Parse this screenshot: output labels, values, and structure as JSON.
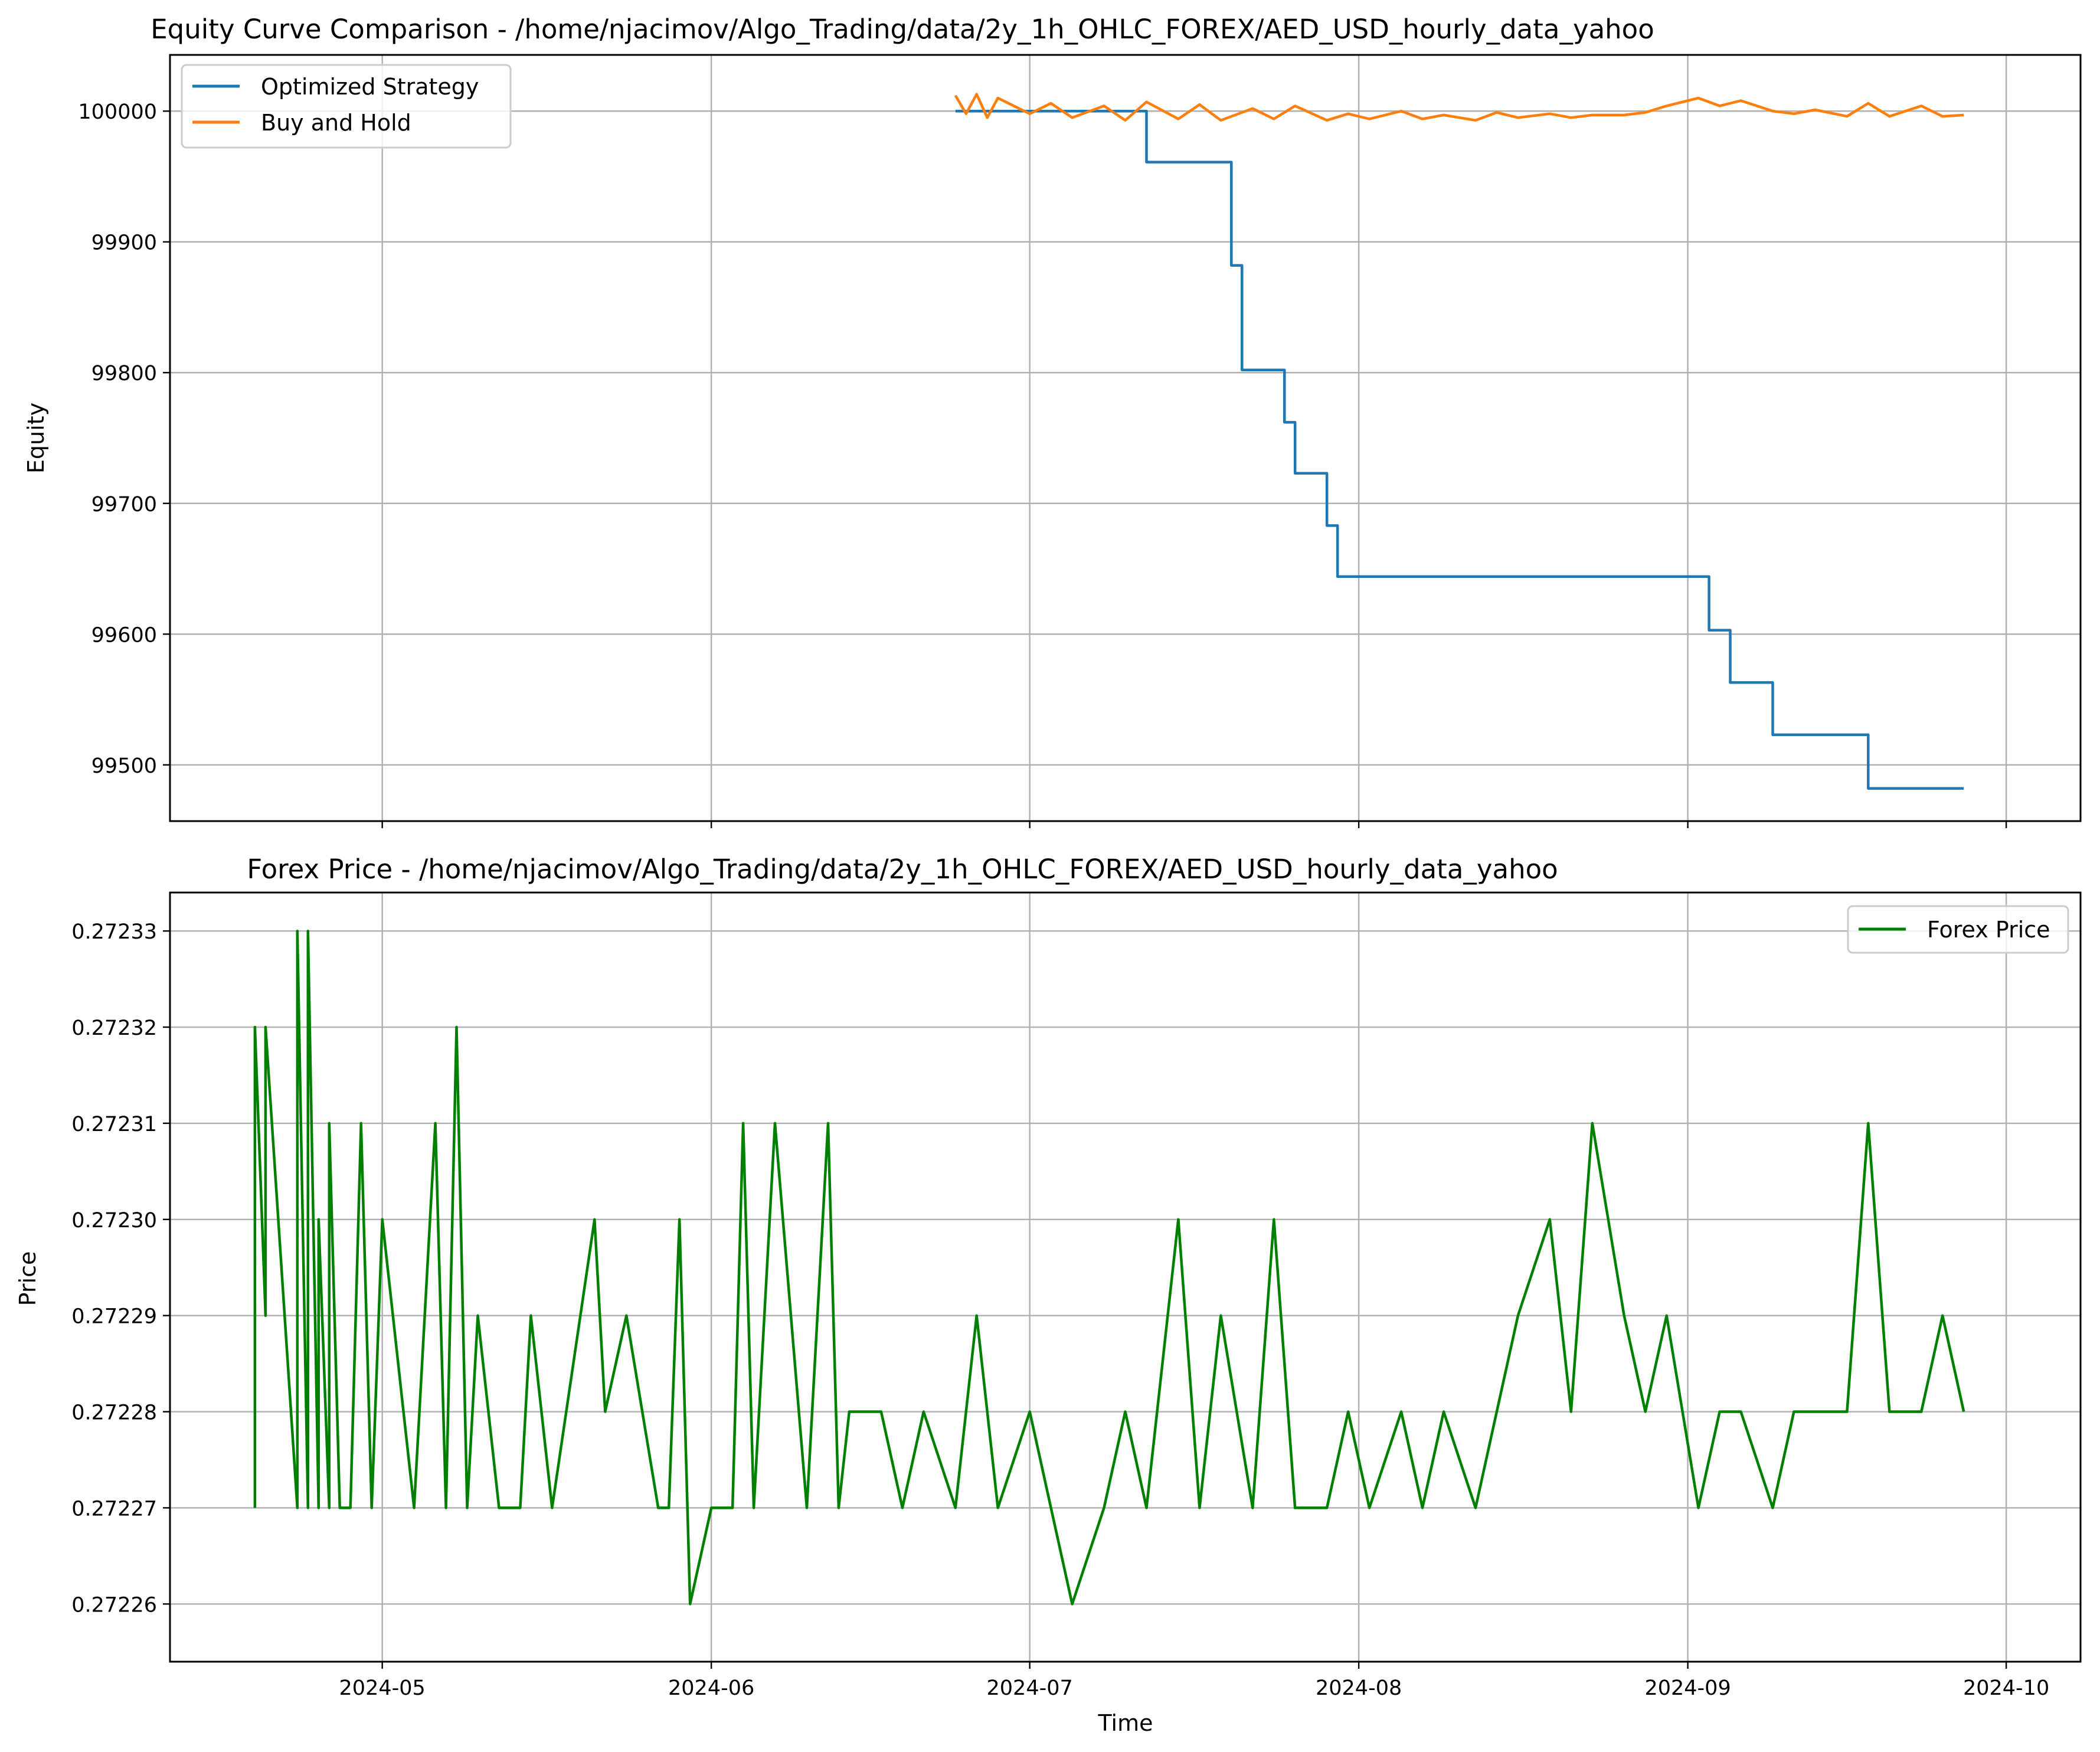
{
  "chart_data": [
    {
      "type": "line",
      "title": "Equity Curve Comparison - /home/njacimov/Algo_Trading/data/2y_1h_OHLC_FOREX/AED_USD_hourly_data_yahoo",
      "xlabel": "",
      "ylabel": "Equity",
      "xlim": [
        "2024-04-11",
        "2024-10-08"
      ],
      "ylim": [
        99457,
        100043
      ],
      "yticks": [
        99500,
        99600,
        99700,
        99800,
        99900,
        100000
      ],
      "xticks": [
        "2024-05-01",
        "2024-06-01",
        "2024-07-01",
        "2024-08-01",
        "2024-09-01",
        "2024-10-01"
      ],
      "x_tick_labels_shown": false,
      "grid": true,
      "legend": "upper-left",
      "series": [
        {
          "name": "Optimized Strategy",
          "color": "#1f77b4",
          "step": true,
          "x": [
            "2024-06-24",
            "2024-07-12",
            "2024-07-12",
            "2024-07-20",
            "2024-07-20",
            "2024-07-20",
            "2024-07-20",
            "2024-07-21",
            "2024-07-21",
            "2024-07-25",
            "2024-07-25",
            "2024-07-26",
            "2024-07-26",
            "2024-07-29",
            "2024-07-29",
            "2024-07-30",
            "2024-07-30",
            "2024-09-03",
            "2024-09-03",
            "2024-09-05",
            "2024-09-05",
            "2024-09-09",
            "2024-09-09",
            "2024-09-18",
            "2024-09-18",
            "2024-09-27"
          ],
          "y": [
            100000,
            100000,
            99961,
            99961,
            99922,
            99922,
            99882,
            99882,
            99802,
            99802,
            99762,
            99762,
            99723,
            99723,
            99683,
            99683,
            99644,
            99644,
            99603,
            99603,
            99563,
            99563,
            99523,
            99523,
            99482,
            99482
          ]
        },
        {
          "name": "Buy and Hold",
          "color": "#ff7f0e",
          "x": [
            "2024-06-24",
            "2024-06-25",
            "2024-06-26",
            "2024-06-27",
            "2024-06-28",
            "2024-07-01",
            "2024-07-03",
            "2024-07-05",
            "2024-07-08",
            "2024-07-10",
            "2024-07-12",
            "2024-07-15",
            "2024-07-17",
            "2024-07-19",
            "2024-07-22",
            "2024-07-24",
            "2024-07-26",
            "2024-07-29",
            "2024-07-31",
            "2024-08-02",
            "2024-08-05",
            "2024-08-07",
            "2024-08-09",
            "2024-08-12",
            "2024-08-14",
            "2024-08-16",
            "2024-08-19",
            "2024-08-21",
            "2024-08-23",
            "2024-08-26",
            "2024-08-28",
            "2024-08-30",
            "2024-09-02",
            "2024-09-04",
            "2024-09-06",
            "2024-09-09",
            "2024-09-11",
            "2024-09-13",
            "2024-09-16",
            "2024-09-18",
            "2024-09-20",
            "2024-09-23",
            "2024-09-25",
            "2024-09-27"
          ],
          "y": [
            100012,
            99998,
            100013,
            99995,
            100010,
            99998,
            100006,
            99995,
            100004,
            99993,
            100007,
            99994,
            100005,
            99993,
            100002,
            99994,
            100004,
            99993,
            99998,
            99994,
            100000,
            99994,
            99997,
            99993,
            99999,
            99995,
            99998,
            99995,
            99997,
            99997,
            99999,
            100004,
            100010,
            100004,
            100008,
            100000,
            99998,
            100001,
            99996,
            100006,
            99996,
            100004,
            99996,
            99997
          ]
        }
      ]
    },
    {
      "type": "line",
      "title": "Forex Price - /home/njacimov/Algo_Trading/data/2y_1h_OHLC_FOREX/AED_USD_hourly_data_yahoo",
      "xlabel": "Time",
      "ylabel": "Price",
      "xlim": [
        "2024-04-11",
        "2024-10-08"
      ],
      "ylim": [
        0.272254,
        0.272334
      ],
      "yticks": [
        0.27226,
        0.27227,
        0.27228,
        0.27229,
        0.2723,
        0.27231,
        0.27232,
        0.27233
      ],
      "xticks": [
        "2024-05-01",
        "2024-06-01",
        "2024-07-01",
        "2024-08-01",
        "2024-09-01",
        "2024-10-01"
      ],
      "x_tick_labels": [
        "2024-05",
        "2024-06",
        "2024-07",
        "2024-08",
        "2024-09",
        "2024-10"
      ],
      "grid": true,
      "legend": "upper-right",
      "series": [
        {
          "name": "Forex Price",
          "color": "#008000",
          "x": [
            "2024-04-19",
            "2024-04-19",
            "2024-04-20",
            "2024-04-20",
            "2024-04-23",
            "2024-04-23",
            "2024-04-24",
            "2024-04-24",
            "2024-04-25",
            "2024-04-25",
            "2024-04-26",
            "2024-04-26",
            "2024-04-27",
            "2024-04-28",
            "2024-04-29",
            "2024-04-30",
            "2024-05-01",
            "2024-05-02",
            "2024-05-03",
            "2024-05-04",
            "2024-05-06",
            "2024-05-07",
            "2024-05-08",
            "2024-05-09",
            "2024-05-10",
            "2024-05-12",
            "2024-05-14",
            "2024-05-15",
            "2024-05-17",
            "2024-05-21",
            "2024-05-22",
            "2024-05-24",
            "2024-05-27",
            "2024-05-28",
            "2024-05-29",
            "2024-05-30",
            "2024-06-01",
            "2024-06-03",
            "2024-06-04",
            "2024-06-05",
            "2024-06-07",
            "2024-06-10",
            "2024-06-12",
            "2024-06-13",
            "2024-06-14",
            "2024-06-17",
            "2024-06-19",
            "2024-06-21",
            "2024-06-24",
            "2024-06-26",
            "2024-06-28",
            "2024-07-01",
            "2024-07-03",
            "2024-07-05",
            "2024-07-08",
            "2024-07-10",
            "2024-07-12",
            "2024-07-15",
            "2024-07-17",
            "2024-07-19",
            "2024-07-22",
            "2024-07-24",
            "2024-07-26",
            "2024-07-29",
            "2024-07-31",
            "2024-08-02",
            "2024-08-05",
            "2024-08-07",
            "2024-08-09",
            "2024-08-12",
            "2024-08-14",
            "2024-08-16",
            "2024-08-19",
            "2024-08-21",
            "2024-08-23",
            "2024-08-26",
            "2024-08-28",
            "2024-08-30",
            "2024-09-02",
            "2024-09-04",
            "2024-09-06",
            "2024-09-09",
            "2024-09-11",
            "2024-09-13",
            "2024-09-16",
            "2024-09-18",
            "2024-09-20",
            "2024-09-23",
            "2024-09-25",
            "2024-09-27"
          ],
          "y": [
            0.27227,
            0.27232,
            0.27229,
            0.27232,
            0.27227,
            0.27233,
            0.27227,
            0.27233,
            0.27227,
            0.2723,
            0.27227,
            0.27231,
            0.27227,
            0.27227,
            0.27231,
            0.27227,
            0.2723,
            0.27229,
            0.27228,
            0.27227,
            0.27231,
            0.27227,
            0.27232,
            0.27227,
            0.27229,
            0.27227,
            0.27227,
            0.27229,
            0.27227,
            0.2723,
            0.27228,
            0.27229,
            0.27227,
            0.27227,
            0.2723,
            0.27226,
            0.27227,
            0.27227,
            0.27231,
            0.27227,
            0.27231,
            0.27227,
            0.27231,
            0.27227,
            0.27228,
            0.27228,
            0.27227,
            0.27228,
            0.27227,
            0.27229,
            0.27227,
            0.27228,
            0.27227,
            0.27226,
            0.27227,
            0.27228,
            0.27227,
            0.2723,
            0.27227,
            0.27229,
            0.27227,
            0.2723,
            0.27227,
            0.27227,
            0.27228,
            0.27227,
            0.27228,
            0.27227,
            0.27228,
            0.27227,
            0.27228,
            0.27229,
            0.2723,
            0.27228,
            0.27231,
            0.27229,
            0.27228,
            0.27229,
            0.27227,
            0.27228,
            0.27228,
            0.27227,
            0.27228,
            0.27228,
            0.27228,
            0.27231,
            0.27228,
            0.27228,
            0.27229,
            0.27228
          ]
        }
      ]
    }
  ]
}
